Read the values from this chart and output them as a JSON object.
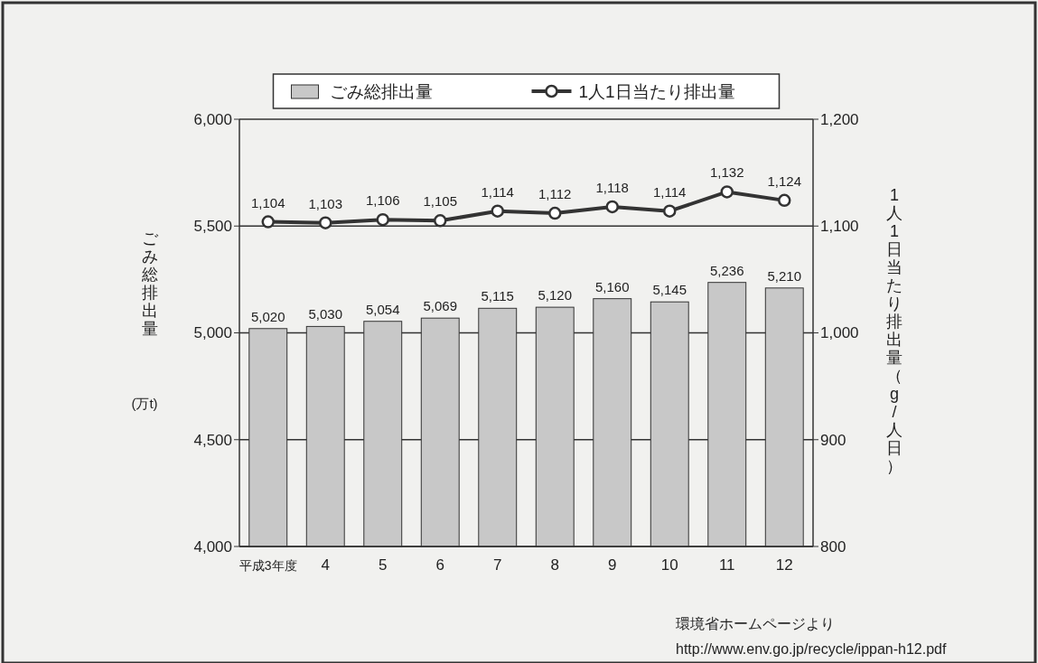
{
  "chart_data": {
    "type": "bar",
    "categories": [
      "平成3年度",
      "4",
      "5",
      "6",
      "7",
      "8",
      "9",
      "10",
      "11",
      "12"
    ],
    "series": [
      {
        "name": "ごみ総排出量",
        "color": "#c8c8c8",
        "values": [
          5020,
          5030,
          5054,
          5069,
          5115,
          5120,
          5160,
          5145,
          5236,
          5210
        ],
        "value_labels": [
          "5,020",
          "5,030",
          "5,054",
          "5,069",
          "5,115",
          "5,120",
          "5,160",
          "5,145",
          "5,236",
          "5,210"
        ]
      },
      {
        "name": "1人1日当たり排出量",
        "type": "line",
        "axis": "y2",
        "color": "#333333",
        "marker": "circle",
        "values": [
          1104,
          1103,
          1106,
          1105,
          1114,
          1112,
          1118,
          1114,
          1132,
          1124
        ],
        "value_labels": [
          "1,104",
          "1,103",
          "1,106",
          "1,105",
          "1,114",
          "1,112",
          "1,118",
          "1,114",
          "1,132",
          "1,124"
        ]
      }
    ],
    "ylabel": "ごみ総排出量",
    "y2label": "1人1日当たり排出量（g/人日）",
    "ylim": [
      4000,
      6000
    ],
    "yticks": [
      {
        "value": 4000,
        "label": "4,000"
      },
      {
        "value": 4500,
        "label": "4,500"
      },
      {
        "value": 5000,
        "label": "5,000"
      },
      {
        "value": 5500,
        "label": "5,500"
      },
      {
        "value": 6000,
        "label": "6,000"
      }
    ],
    "y2lim": [
      800,
      1200
    ],
    "y2ticks": [
      800,
      900,
      {
        "value": 1000,
        "label": "1,000"
      },
      {
        "value": 1100,
        "label": "1,100"
      },
      {
        "value": 1200,
        "label": "1,200"
      }
    ],
    "grid": "y",
    "legend": "top",
    "annotations": [
      "(万t)",
      "環境省ホームページより",
      "http://www.env.go.jp/recycle/ippan-h12.pdf"
    ]
  }
}
